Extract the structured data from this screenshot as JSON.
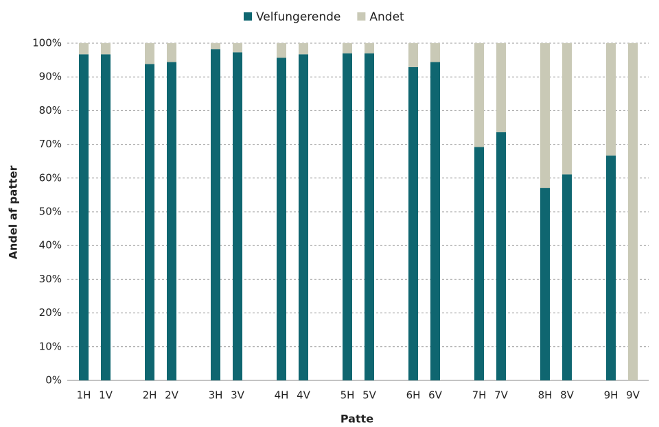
{
  "chart_data": {
    "type": "stacked_bar",
    "x_label": "Patte",
    "y_label": "Andel af patter",
    "categories": [
      "1H",
      "1V",
      null,
      "2H",
      "2V",
      null,
      "3H",
      "3V",
      null,
      "4H",
      "4V",
      null,
      "5H",
      "5V",
      null,
      "6H",
      "6V",
      null,
      "7H",
      "7V",
      null,
      "8H",
      "8V",
      null,
      "9H",
      "9V"
    ],
    "series": [
      {
        "name": "Velfungerende",
        "color": "#0f6670",
        "values": [
          96.7,
          96.7,
          null,
          93.8,
          94.4,
          null,
          98.2,
          97.3,
          null,
          95.7,
          96.7,
          null,
          97,
          97,
          null,
          92.9,
          94.4,
          null,
          69.2,
          73.6,
          null,
          57.1,
          61.1,
          null,
          66.7,
          0
        ]
      },
      {
        "name": "Andet",
        "color": "#c9c9b6",
        "values": [
          3.3,
          3.3,
          null,
          6.2,
          5.6,
          null,
          1.8,
          2.7,
          null,
          4.3,
          3.3,
          null,
          3,
          3,
          null,
          7.1,
          5.6,
          null,
          30.8,
          26.4,
          null,
          42.9,
          38.9,
          null,
          33.3,
          100
        ]
      }
    ],
    "ylim": [
      0,
      100
    ],
    "yticks": [
      {
        "value": 0,
        "label": "0%"
      },
      {
        "value": 10,
        "label": "10%"
      },
      {
        "value": 20,
        "label": "20%"
      },
      {
        "value": 30,
        "label": "30%"
      },
      {
        "value": 40,
        "label": "40%"
      },
      {
        "value": 50,
        "label": "50%"
      },
      {
        "value": 60,
        "label": "60%"
      },
      {
        "value": 70,
        "label": "70%"
      },
      {
        "value": 80,
        "label": "80%"
      },
      {
        "value": 90,
        "label": "90%"
      },
      {
        "value": 100,
        "label": "100%"
      }
    ],
    "grid": true,
    "legend": "top"
  }
}
